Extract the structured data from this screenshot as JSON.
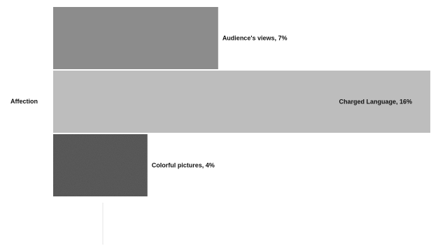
{
  "chart_data": {
    "type": "bar",
    "orientation": "horizontal",
    "category": "Affection",
    "series": [
      {
        "name": "Audience's views",
        "value": 7,
        "label": "Audience's views, 7%",
        "color": "#8c8c8c",
        "pattern": "solid"
      },
      {
        "name": "Charged Language",
        "value": 16,
        "label": "Charged Language, 16%",
        "color": "#bdbdbd",
        "pattern": "solid"
      },
      {
        "name": "Colorful pictures",
        "value": 4,
        "label": "Colorful pictures, 4%",
        "color": "#5e5e5e",
        "pattern": "noise"
      }
    ],
    "unit": "%",
    "xlim": [
      0,
      16
    ],
    "grid": false,
    "legend": "none"
  }
}
